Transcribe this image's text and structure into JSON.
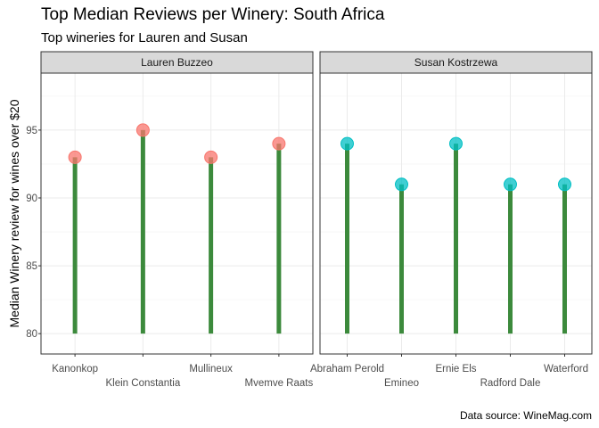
{
  "chart_data": {
    "type": "lollipop",
    "title": "Top Median Reviews per Winery: South Africa",
    "subtitle": "Top wineries for Lauren and Susan",
    "caption": "Data source: WineMag.com",
    "ylabel": "Median Winery review for wines over $20",
    "xlabel": "",
    "ylim": [
      78.5,
      99.2
    ],
    "y_ticks": [
      80,
      85,
      90,
      95
    ],
    "baseline": 80,
    "stem_color": "#3c8a3c",
    "grid": true,
    "legend": "none",
    "facets": [
      {
        "name": "Lauren Buzzeo",
        "point_color": "#f8766d",
        "categories": [
          "Kanonkop",
          "Klein Constantia",
          "Mullineux",
          "Mvemve Raats"
        ],
        "values": [
          93,
          95,
          93,
          94
        ]
      },
      {
        "name": "Susan Kostrzewa",
        "point_color": "#00bfc4",
        "categories": [
          "Abraham Perold",
          "Emineo",
          "Ernie Els",
          "Radford Dale",
          "Waterford"
        ],
        "values": [
          94,
          91,
          94,
          91,
          91
        ]
      }
    ]
  }
}
